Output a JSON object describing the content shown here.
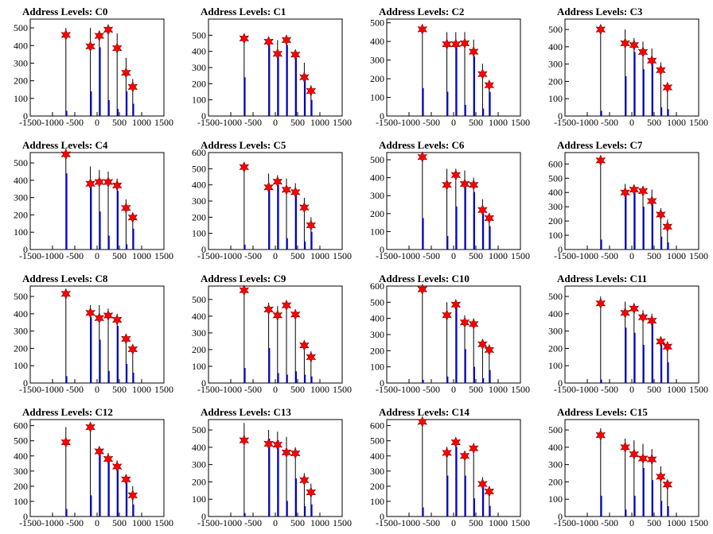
{
  "chart_data": [
    {
      "type": "bar",
      "title": "Address Levels: C0",
      "xlim": [
        -1500,
        1500
      ],
      "ylim": [
        0,
        550
      ],
      "yticks": [
        0,
        100,
        200,
        300,
        400,
        500
      ],
      "xticks": [
        -1500,
        -1000,
        -500,
        0,
        500,
        1000,
        1500
      ],
      "x": [
        -700,
        -150,
        50,
        250,
        450,
        650,
        800
      ],
      "black": [
        500,
        500,
        480,
        490,
        470,
        330,
        210
      ],
      "blue": [
        30,
        140,
        390,
        90,
        40,
        140,
        70
      ],
      "markers": [
        460,
        395,
        455,
        490,
        385,
        245,
        165
      ]
    },
    {
      "type": "bar",
      "title": "Address Levels: C1",
      "xlim": [
        -1500,
        1500
      ],
      "ylim": [
        0,
        600
      ],
      "yticks": [
        0,
        100,
        200,
        300,
        400,
        500
      ],
      "xticks": [
        -1500,
        -1000,
        -500,
        0,
        500,
        1000,
        1500
      ],
      "x": [
        -700,
        -150,
        50,
        250,
        450,
        650,
        800
      ],
      "black": [
        500,
        470,
        470,
        450,
        400,
        330,
        190
      ],
      "blue": [
        240,
        440,
        380,
        440,
        360,
        240,
        100
      ],
      "markers": [
        480,
        460,
        385,
        470,
        380,
        240,
        155
      ]
    },
    {
      "type": "bar",
      "title": "Address Levels: C2",
      "xlim": [
        -1500,
        1500
      ],
      "ylim": [
        0,
        520
      ],
      "yticks": [
        0,
        100,
        200,
        300,
        400,
        500
      ],
      "xticks": [
        -1500,
        -1000,
        -500,
        0,
        500,
        1000,
        1500
      ],
      "x": [
        -700,
        -150,
        50,
        250,
        450,
        650,
        800
      ],
      "black": [
        490,
        450,
        450,
        450,
        410,
        280,
        190
      ],
      "blue": [
        150,
        130,
        380,
        60,
        320,
        40,
        130
      ],
      "markers": [
        465,
        385,
        385,
        390,
        345,
        225,
        165
      ]
    },
    {
      "type": "bar",
      "title": "Address Levels: C3",
      "xlim": [
        -1500,
        1500
      ],
      "ylim": [
        0,
        560
      ],
      "yticks": [
        0,
        100,
        200,
        300,
        400,
        500
      ],
      "xticks": [
        -1500,
        -1000,
        -500,
        0,
        500,
        1000,
        1500
      ],
      "x": [
        -700,
        -150,
        50,
        250,
        450,
        650,
        800
      ],
      "black": [
        520,
        500,
        450,
        430,
        390,
        310,
        190
      ],
      "blue": [
        30,
        230,
        370,
        270,
        320,
        50,
        40
      ],
      "markers": [
        500,
        420,
        410,
        370,
        320,
        265,
        165
      ]
    },
    {
      "type": "bar",
      "title": "Address Levels: C4",
      "xlim": [
        -1500,
        1500
      ],
      "ylim": [
        0,
        560
      ],
      "yticks": [
        0,
        100,
        200,
        300,
        400,
        500
      ],
      "xticks": [
        -1500,
        -1000,
        -500,
        0,
        500,
        1000,
        1500
      ],
      "x": [
        -700,
        -150,
        50,
        250,
        450,
        650,
        800
      ],
      "black": [
        550,
        480,
        460,
        450,
        410,
        290,
        210
      ],
      "blue": [
        440,
        380,
        220,
        80,
        340,
        30,
        120
      ],
      "markers": [
        550,
        380,
        390,
        390,
        370,
        240,
        185
      ]
    },
    {
      "type": "bar",
      "title": "Address Levels: C5",
      "xlim": [
        -1500,
        1500
      ],
      "ylim": [
        0,
        600
      ],
      "yticks": [
        0,
        100,
        200,
        300,
        400,
        500,
        600
      ],
      "xticks": [
        -1500,
        -1000,
        -500,
        0,
        500,
        1000,
        1500
      ],
      "x": [
        -700,
        -150,
        50,
        250,
        450,
        650,
        800
      ],
      "black": [
        540,
        470,
        460,
        440,
        410,
        320,
        200
      ],
      "blue": [
        30,
        400,
        400,
        70,
        350,
        50,
        110
      ],
      "markers": [
        510,
        385,
        420,
        370,
        355,
        260,
        150
      ]
    },
    {
      "type": "bar",
      "title": "Address Levels: C6",
      "xlim": [
        -1500,
        1500
      ],
      "ylim": [
        0,
        540
      ],
      "yticks": [
        0,
        100,
        200,
        300,
        400,
        500
      ],
      "xticks": [
        -1500,
        -1000,
        -500,
        0,
        500,
        1000,
        1500
      ],
      "x": [
        -700,
        -150,
        50,
        250,
        450,
        650,
        800
      ],
      "black": [
        540,
        450,
        450,
        440,
        400,
        280,
        190
      ],
      "blue": [
        175,
        75,
        240,
        350,
        320,
        200,
        130
      ],
      "markers": [
        515,
        360,
        415,
        365,
        360,
        220,
        175
      ]
    },
    {
      "type": "bar",
      "title": "Address Levels: C7",
      "xlim": [
        -1500,
        1500
      ],
      "ylim": [
        0,
        680
      ],
      "yticks": [
        0,
        100,
        200,
        300,
        400,
        500,
        600
      ],
      "xticks": [
        -1500,
        -1000,
        -500,
        0,
        500,
        1000,
        1500
      ],
      "x": [
        -700,
        -150,
        50,
        250,
        450,
        650,
        800
      ],
      "black": [
        650,
        460,
        430,
        420,
        420,
        290,
        210
      ],
      "blue": [
        70,
        380,
        400,
        300,
        360,
        90,
        50
      ],
      "markers": [
        625,
        400,
        420,
        410,
        340,
        245,
        160
      ]
    },
    {
      "type": "bar",
      "title": "Address Levels: C8",
      "xlim": [
        -1500,
        1500
      ],
      "ylim": [
        0,
        560
      ],
      "yticks": [
        0,
        100,
        200,
        300,
        400,
        500
      ],
      "xticks": [
        -1500,
        -1000,
        -500,
        0,
        500,
        1000,
        1500
      ],
      "x": [
        -700,
        -150,
        50,
        250,
        450,
        650,
        800
      ],
      "black": [
        540,
        450,
        450,
        430,
        400,
        260,
        190
      ],
      "blue": [
        40,
        380,
        250,
        70,
        330,
        110,
        60
      ],
      "markers": [
        515,
        405,
        375,
        390,
        365,
        255,
        195
      ]
    },
    {
      "type": "bar",
      "title": "Address Levels: C9",
      "xlim": [
        -1500,
        1500
      ],
      "ylim": [
        0,
        580
      ],
      "yticks": [
        0,
        100,
        200,
        300,
        400,
        500
      ],
      "xticks": [
        -1500,
        -1000,
        -500,
        0,
        500,
        1000,
        1500
      ],
      "x": [
        -700,
        -150,
        50,
        250,
        450,
        650,
        800
      ],
      "black": [
        560,
        480,
        460,
        470,
        420,
        250,
        190
      ],
      "blue": [
        90,
        210,
        60,
        50,
        70,
        50,
        40
      ],
      "markers": [
        555,
        440,
        405,
        465,
        410,
        225,
        155
      ]
    },
    {
      "type": "bar",
      "title": "Address Levels: C10",
      "xlim": [
        -1500,
        1500
      ],
      "ylim": [
        0,
        600
      ],
      "yticks": [
        0,
        100,
        200,
        300,
        400,
        500,
        600
      ],
      "xticks": [
        -1500,
        -1000,
        -500,
        0,
        500,
        1000,
        1500
      ],
      "x": [
        -700,
        -150,
        50,
        250,
        450,
        650,
        800
      ],
      "black": [
        590,
        500,
        490,
        420,
        400,
        270,
        200
      ],
      "blue": [
        20,
        40,
        490,
        210,
        100,
        30,
        80
      ],
      "markers": [
        580,
        420,
        485,
        375,
        365,
        240,
        205
      ]
    },
    {
      "type": "bar",
      "title": "Address Levels: C11",
      "xlim": [
        -1500,
        1500
      ],
      "ylim": [
        0,
        560
      ],
      "yticks": [
        0,
        100,
        200,
        300,
        400,
        500
      ],
      "xticks": [
        -1500,
        -1000,
        -500,
        0,
        500,
        1000,
        1500
      ],
      "x": [
        -700,
        -150,
        50,
        250,
        450,
        650,
        800
      ],
      "black": [
        500,
        470,
        460,
        420,
        400,
        260,
        220
      ],
      "blue": [
        20,
        320,
        290,
        220,
        370,
        220,
        120
      ],
      "markers": [
        460,
        405,
        430,
        380,
        360,
        240,
        210
      ]
    },
    {
      "type": "bar",
      "title": "Address Levels: C12",
      "xlim": [
        -1500,
        1500
      ],
      "ylim": [
        0,
        640
      ],
      "yticks": [
        0,
        100,
        200,
        300,
        400,
        500,
        600
      ],
      "xticks": [
        -1500,
        -1000,
        -500,
        0,
        500,
        1000,
        1500
      ],
      "x": [
        -700,
        -150,
        50,
        250,
        450,
        650,
        800
      ],
      "black": [
        590,
        620,
        450,
        420,
        370,
        260,
        200
      ],
      "blue": [
        50,
        140,
        450,
        380,
        350,
        230,
        80
      ],
      "markers": [
        490,
        590,
        430,
        380,
        330,
        245,
        140
      ]
    },
    {
      "type": "bar",
      "title": "Address Levels: C13",
      "xlim": [
        -1500,
        1500
      ],
      "ylim": [
        0,
        560
      ],
      "yticks": [
        0,
        100,
        200,
        300,
        400,
        500
      ],
      "xticks": [
        -1500,
        -1000,
        -500,
        0,
        500,
        1000,
        1500
      ],
      "x": [
        -700,
        -150,
        50,
        250,
        450,
        650,
        800
      ],
      "black": [
        540,
        500,
        490,
        460,
        400,
        250,
        190
      ],
      "blue": [
        20,
        450,
        440,
        90,
        220,
        60,
        70
      ],
      "markers": [
        440,
        420,
        415,
        370,
        365,
        210,
        140
      ]
    },
    {
      "type": "bar",
      "title": "Address Levels: C14",
      "xlim": [
        -1500,
        1500
      ],
      "ylim": [
        0,
        640
      ],
      "yticks": [
        0,
        100,
        200,
        300,
        400,
        500,
        600
      ],
      "xticks": [
        -1500,
        -1000,
        -500,
        0,
        500,
        1000,
        1500
      ],
      "x": [
        -700,
        -150,
        50,
        250,
        450,
        650,
        800
      ],
      "black": [
        660,
        460,
        460,
        430,
        430,
        260,
        200
      ],
      "blue": [
        60,
        270,
        460,
        270,
        120,
        200,
        70
      ],
      "markers": [
        625,
        420,
        490,
        400,
        450,
        215,
        165
      ]
    },
    {
      "type": "bar",
      "title": "Address Levels: C15",
      "xlim": [
        -1500,
        1500
      ],
      "ylim": [
        0,
        560
      ],
      "yticks": [
        0,
        100,
        200,
        300,
        400,
        500
      ],
      "xticks": [
        -1500,
        -1000,
        -500,
        0,
        500,
        1000,
        1500
      ],
      "x": [
        -700,
        -150,
        50,
        250,
        450,
        650,
        800
      ],
      "black": [
        510,
        450,
        440,
        420,
        390,
        290,
        200
      ],
      "blue": [
        120,
        40,
        120,
        280,
        210,
        90,
        60
      ],
      "markers": [
        470,
        400,
        360,
        335,
        330,
        230,
        185
      ]
    }
  ],
  "colors": {
    "bar_black": "#000000",
    "bar_blue": "#0000ff",
    "marker": "#ff0000",
    "marker_outline": "#7a0000",
    "frame": "#000000"
  }
}
